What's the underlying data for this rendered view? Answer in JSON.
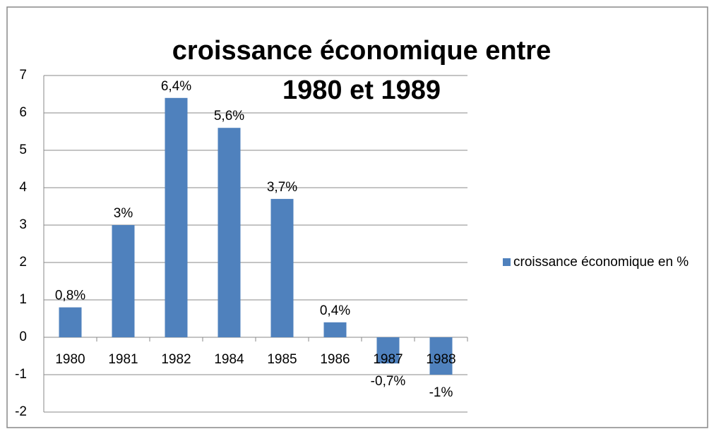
{
  "chart_data": {
    "type": "bar",
    "title": "croissance économique entre 1980 et 1989",
    "categories": [
      "1980",
      "1981",
      "1982",
      "1984",
      "1985",
      "1986",
      "1987",
      "1988"
    ],
    "series": [
      {
        "name": "croissance économique en %",
        "color": "#4f81bd",
        "values": [
          0.8,
          3,
          6.4,
          5.6,
          3.7,
          0.4,
          -0.7,
          -1
        ],
        "value_labels": [
          "0,8%",
          "3%",
          "6,4%",
          "5,6%",
          "3,7%",
          "0,4%",
          "-0,7%",
          "-1%"
        ]
      }
    ],
    "ylim": [
      -2,
      7
    ],
    "yticks": [
      -2,
      -1,
      0,
      1,
      2,
      3,
      4,
      5,
      6,
      7
    ],
    "grid": true,
    "legend": "right"
  }
}
